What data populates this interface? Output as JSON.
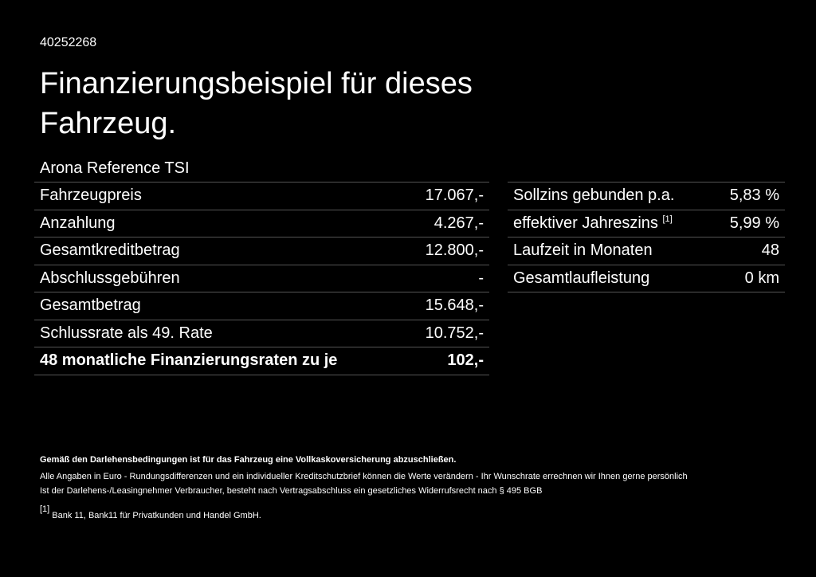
{
  "header": {
    "id": "40252268",
    "title": "Finanzierungsbeispiel für dieses Fahrzeug."
  },
  "left_table": {
    "caption": "Arona Reference TSI",
    "rows": [
      [
        "Fahrzeugpreis",
        "17.067,-"
      ],
      [
        "Anzahlung",
        "4.267,-"
      ],
      [
        "Gesamtkreditbetrag",
        "12.800,-"
      ],
      [
        "Abschlussgebühren",
        "-"
      ],
      [
        "Gesamtbetrag",
        "15.648,-"
      ],
      [
        "Schlussrate als 49. Rate",
        "10.752,-"
      ],
      [
        "48 monatliche Finanzierungsraten zu je",
        "102,-"
      ]
    ]
  },
  "right_table": {
    "rows": [
      [
        "Sollzins gebunden p.a.",
        "5,83 %"
      ],
      [
        "effektiver Jahreszins",
        "5,99 %"
      ],
      [
        "Laufzeit in Monaten",
        "48"
      ],
      [
        "Gesamtlaufleistung",
        "0 km"
      ]
    ],
    "footnote_marker": "[1]"
  },
  "notes": {
    "bold": "Gemäß den Darlehensbedingungen ist für das Fahrzeug eine Vollkaskoversicherung abzuschließen.",
    "lines": [
      "Alle Angaben in Euro - Rundungsdifferenzen und ein individueller Kreditschutzbrief können die Werte verändern - Ihr Wunschrate errechnen wir Ihnen gerne persönlich",
      "Ist der Darlehens-/Leasingnehmer Verbraucher, besteht nach Vertragsabschluss ein gesetzliches Widerrufsrecht nach § 495 BGB"
    ],
    "footnote": {
      "marker": "[1]",
      "text": "Bank 11, Bank11 für Privatkunden und Handel GmbH."
    }
  }
}
